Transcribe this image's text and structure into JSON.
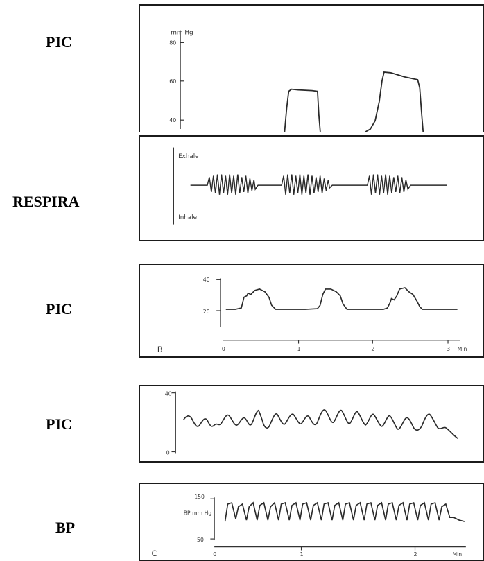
{
  "row_labels": [
    "PIC",
    "RESPIRA",
    "PIC",
    "PIC",
    "BP"
  ],
  "colors": {
    "trace": "#2a2a2a",
    "border": "#1b1b1b",
    "text": "#000000"
  },
  "chart_data": [
    {
      "type": "line",
      "title": "",
      "ylabel": "mm Hg",
      "y_ticks": [
        "80",
        "60",
        "40"
      ],
      "ylim": [
        35,
        90
      ],
      "series": [
        {
          "values": [
            [
              0,
              38
            ],
            [
              0.3,
              38
            ],
            [
              0.33,
              52
            ],
            [
              0.35,
              53
            ],
            [
              0.45,
              52
            ],
            [
              0.47,
              38
            ],
            [
              0.55,
              38
            ],
            [
              0.58,
              42
            ],
            [
              0.62,
              64
            ],
            [
              0.66,
              63
            ],
            [
              0.75,
              60
            ],
            [
              0.78,
              38
            ],
            [
              1.0,
              38
            ]
          ]
        }
      ]
    },
    {
      "type": "line",
      "title": "",
      "labels": {
        "top": "Exhale",
        "bottom": "Inhale"
      },
      "series": [
        {
          "description_free": true,
          "values": [
            [
              0,
              0
            ],
            [
              0.05,
              0
            ],
            [
              0.3,
              0
            ],
            [
              0.35,
              0
            ],
            [
              0.65,
              0
            ],
            [
              1.0,
              0
            ]
          ]
        }
      ]
    },
    {
      "type": "line",
      "title": "",
      "panel_letter": "B",
      "y_ticks": [
        "40",
        "20"
      ],
      "x_ticks": [
        "0",
        "1",
        "2",
        "3"
      ],
      "x_unit": "Min",
      "ylim": [
        15,
        42
      ],
      "series": [
        {
          "values": [
            [
              0.0,
              22
            ],
            [
              0.1,
              22
            ],
            [
              0.14,
              30
            ],
            [
              0.2,
              34
            ],
            [
              0.26,
              34
            ],
            [
              0.3,
              22
            ],
            [
              0.5,
              22
            ],
            [
              0.52,
              31
            ],
            [
              0.6,
              34
            ],
            [
              0.66,
              32
            ],
            [
              0.7,
              22
            ],
            [
              0.84,
              22
            ],
            [
              0.86,
              28
            ],
            [
              0.9,
              36
            ],
            [
              0.96,
              34
            ],
            [
              1.0,
              22
            ]
          ]
        }
      ]
    },
    {
      "type": "line",
      "title": "",
      "y_ticks": [
        "40",
        "0"
      ],
      "ylim": [
        0,
        40
      ],
      "series": [
        {
          "values": [
            [
              0,
              18
            ],
            [
              0.1,
              26
            ],
            [
              0.2,
              20
            ],
            [
              0.3,
              25
            ],
            [
              0.4,
              17
            ],
            [
              0.5,
              27
            ],
            [
              0.6,
              19
            ],
            [
              0.7,
              26
            ],
            [
              0.8,
              18
            ],
            [
              0.9,
              24
            ],
            [
              1.0,
              15
            ]
          ]
        }
      ]
    },
    {
      "type": "line",
      "title": "",
      "panel_letter": "C",
      "y_ticks": [
        "150",
        "50"
      ],
      "ylabel": "BP mm Hg",
      "x_ticks": [
        "0",
        "1",
        "2"
      ],
      "x_unit": "Min",
      "ylim": [
        50,
        150
      ],
      "series": [
        {
          "values": [
            [
              0,
              110
            ],
            [
              0.04,
              140
            ],
            [
              0.08,
              110
            ],
            [
              0.12,
              140
            ],
            [
              0.16,
              110
            ],
            [
              0.2,
              140
            ],
            [
              0.24,
              110
            ],
            [
              0.28,
              140
            ],
            [
              0.32,
              110
            ],
            [
              0.36,
              140
            ],
            [
              0.4,
              110
            ],
            [
              0.44,
              140
            ],
            [
              0.48,
              110
            ],
            [
              0.52,
              140
            ],
            [
              0.56,
              110
            ],
            [
              0.6,
              140
            ],
            [
              0.64,
              110
            ],
            [
              0.68,
              140
            ],
            [
              0.72,
              110
            ],
            [
              0.76,
              140
            ],
            [
              0.8,
              110
            ],
            [
              0.84,
              140
            ],
            [
              0.88,
              110
            ],
            [
              0.92,
              140
            ],
            [
              0.96,
              115
            ],
            [
              1.0,
              105
            ]
          ]
        }
      ]
    }
  ]
}
